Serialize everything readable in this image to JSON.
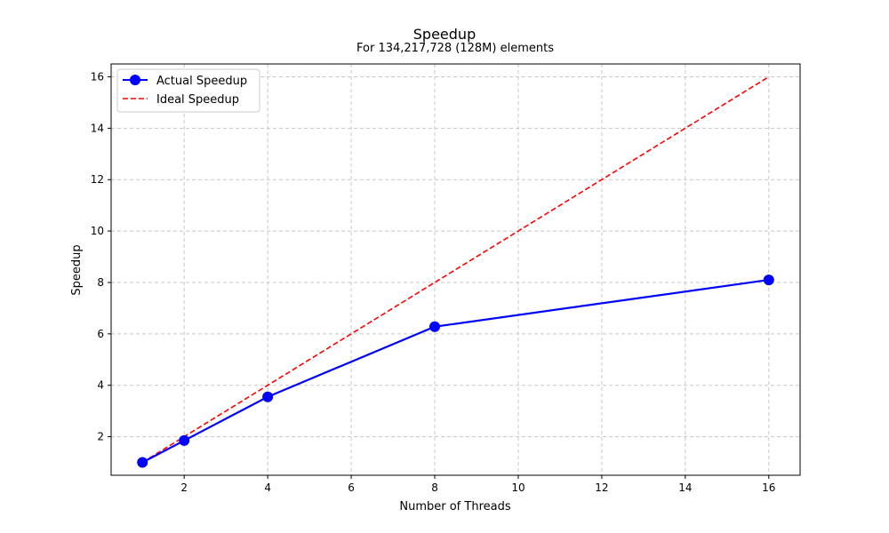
{
  "chart_data": {
    "type": "line",
    "title": "Speedup",
    "subtitle": "For 134,217,728 (128M) elements",
    "xlabel": "Number of Threads",
    "ylabel": "Speedup",
    "xlim": [
      0.25,
      16.75
    ],
    "ylim": [
      0.5,
      16.5
    ],
    "xticks": [
      2,
      4,
      6,
      8,
      10,
      12,
      14,
      16
    ],
    "yticks": [
      2,
      4,
      6,
      8,
      10,
      12,
      14,
      16
    ],
    "grid": true,
    "legend_position": "top-left",
    "series": [
      {
        "name": "Actual Speedup",
        "style": "solid-with-markers",
        "color": "#0000ff",
        "x": [
          1,
          2,
          4,
          8,
          16
        ],
        "y": [
          1.0,
          1.85,
          3.55,
          6.28,
          8.1
        ]
      },
      {
        "name": "Ideal Speedup",
        "style": "dashed",
        "color": "#ff0000",
        "x": [
          1,
          16
        ],
        "y": [
          1,
          16
        ]
      }
    ]
  }
}
